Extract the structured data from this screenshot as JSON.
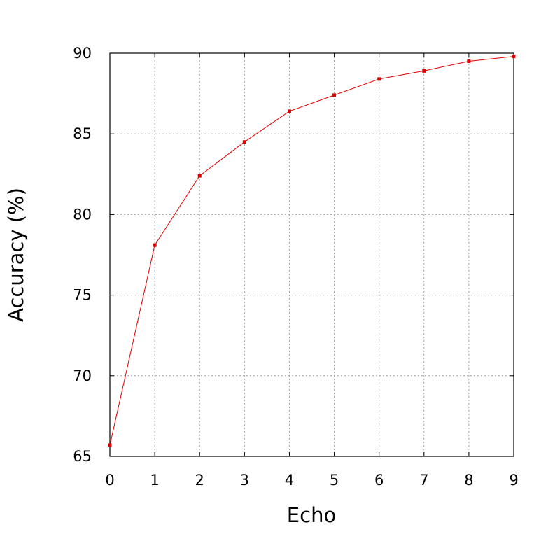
{
  "chart_data": {
    "type": "line",
    "title": "",
    "xlabel": "Echo",
    "ylabel": "Accuracy (%)",
    "xlim": [
      0,
      9
    ],
    "ylim": [
      65,
      90
    ],
    "xticks": [
      "0",
      "1",
      "2",
      "3",
      "4",
      "5",
      "6",
      "7",
      "8",
      "9"
    ],
    "yticks": [
      "65",
      "70",
      "75",
      "80",
      "85",
      "90"
    ],
    "grid": true,
    "legend": "none",
    "series": [
      {
        "color": "#e00000",
        "x": [
          0,
          1,
          2,
          3,
          4,
          5,
          6,
          7,
          8,
          9
        ],
        "y": [
          65.7,
          78.1,
          82.4,
          84.5,
          86.4,
          87.4,
          88.4,
          88.9,
          89.5,
          89.8
        ]
      }
    ]
  }
}
